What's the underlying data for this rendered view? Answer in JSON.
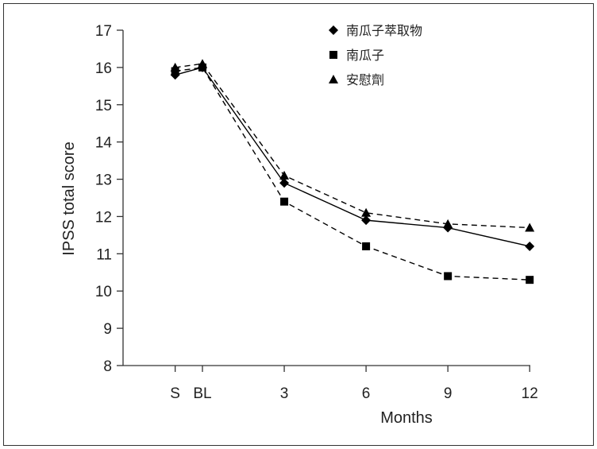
{
  "chart_data": {
    "type": "line",
    "title": "",
    "xlabel": "Months",
    "ylabel": "IPSS total score",
    "categories": [
      "S",
      "BL",
      "3",
      "6",
      "9",
      "12"
    ],
    "x_months": [
      -1,
      0,
      3,
      6,
      9,
      12
    ],
    "ylim": [
      8,
      17
    ],
    "yticks": [
      8,
      9,
      10,
      11,
      12,
      13,
      14,
      15,
      16,
      17
    ],
    "grid": false,
    "legend_position": "top-right",
    "series": [
      {
        "name": "南瓜子萃取物",
        "marker": "diamond",
        "line": "solid",
        "color": "#000000",
        "values": [
          15.8,
          16.0,
          12.9,
          11.9,
          11.7,
          11.2
        ]
      },
      {
        "name": "南瓜子",
        "marker": "square",
        "line": "dashed",
        "color": "#000000",
        "values": [
          15.9,
          16.0,
          12.4,
          11.2,
          10.4,
          10.3
        ]
      },
      {
        "name": "安慰劑",
        "marker": "triangle",
        "line": "dashed",
        "color": "#000000",
        "values": [
          16.0,
          16.1,
          13.1,
          12.1,
          11.8,
          11.7
        ]
      }
    ]
  }
}
